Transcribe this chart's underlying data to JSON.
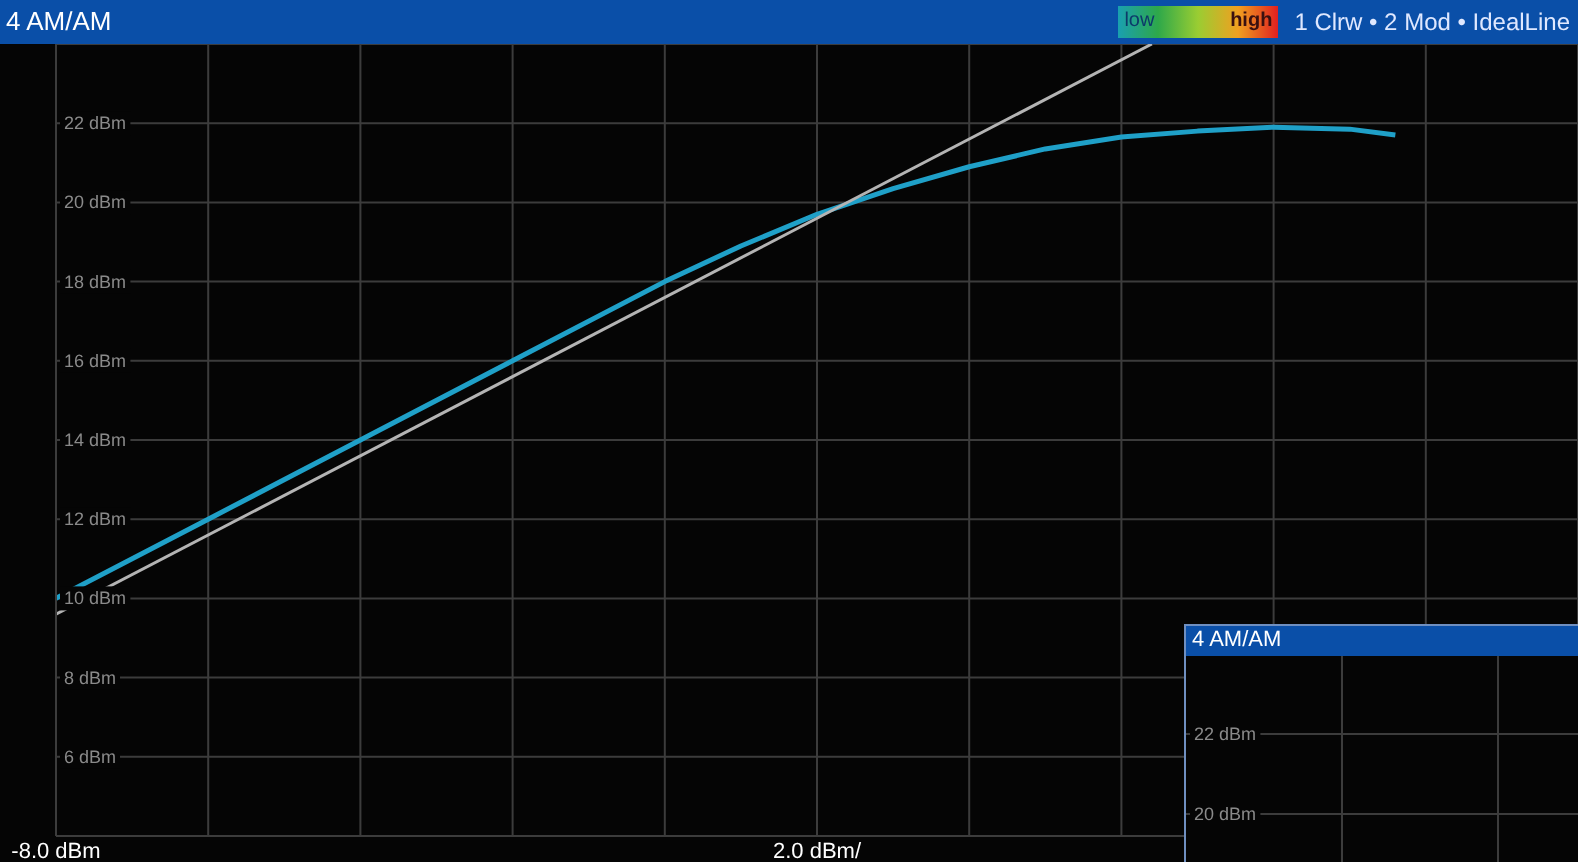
{
  "chart_data": [
    {
      "type": "line",
      "title": "4 AM/AM",
      "annotations": [
        "1 Clrw • 2 Mod • IdealLine",
        "low",
        "high"
      ],
      "xlim": [
        -8,
        12
      ],
      "xticks": [
        {
          "value": -8,
          "label": "-8.0 dBm"
        },
        {
          "value": -6,
          "label": null
        },
        {
          "value": -4,
          "label": null
        },
        {
          "value": -2,
          "label": null
        },
        {
          "value": 0,
          "label": null
        },
        {
          "value": 2,
          "label": "2.0 dBm/"
        },
        {
          "value": 4,
          "label": null
        },
        {
          "value": 6,
          "label": null
        },
        {
          "value": 8,
          "label": null
        },
        {
          "value": 10,
          "label": null
        },
        {
          "value": 12,
          "label": null
        }
      ],
      "ylim": [
        4,
        24
      ],
      "yticks": [
        {
          "value": 6,
          "label": "6 dBm"
        },
        {
          "value": 8,
          "label": "8 dBm"
        },
        {
          "value": 10,
          "label": "10 dBm"
        },
        {
          "value": 12,
          "label": "12 dBm"
        },
        {
          "value": 14,
          "label": "14 dBm"
        },
        {
          "value": 16,
          "label": "16 dBm"
        },
        {
          "value": 18,
          "label": "18 dBm"
        },
        {
          "value": 20,
          "label": "20 dBm"
        },
        {
          "value": 22,
          "label": "22 dBm"
        }
      ],
      "grid": true,
      "series": [
        {
          "color": "#1fa0c8",
          "x": [
            -8,
            -6,
            -4,
            -2,
            0,
            1,
            2,
            3,
            4,
            5,
            6,
            7,
            8,
            9,
            9.6
          ],
          "values": [
            10.0,
            12.0,
            14.0,
            16.0,
            18.0,
            18.9,
            19.7,
            20.35,
            20.9,
            21.35,
            21.65,
            21.8,
            21.9,
            21.85,
            21.7
          ]
        },
        {
          "color": "#b4b4b4",
          "x": [
            -8,
            6.4
          ],
          "values": [
            9.6,
            24
          ]
        }
      ]
    },
    {
      "type": "other",
      "title": "4 AM/AM",
      "annotations": [
        "22 dBm",
        "20 dBm"
      ]
    }
  ]
}
